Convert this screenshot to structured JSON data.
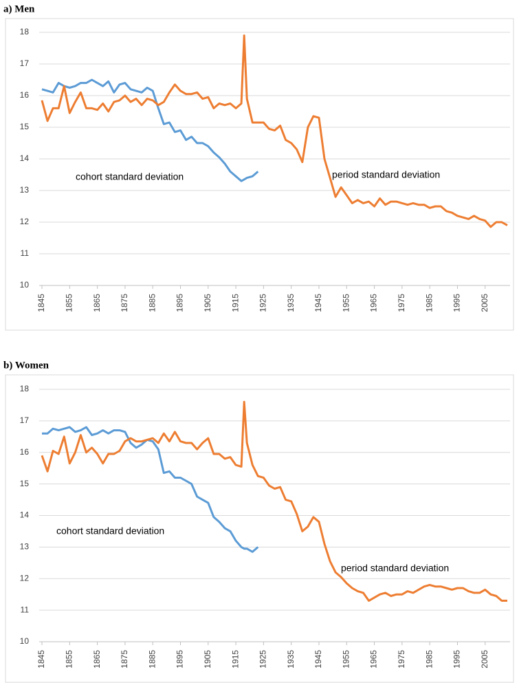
{
  "chart_data": [
    {
      "type": "line",
      "title": "a) Men",
      "x": [
        1845,
        1847,
        1849,
        1851,
        1853,
        1855,
        1857,
        1859,
        1861,
        1863,
        1865,
        1867,
        1869,
        1871,
        1873,
        1875,
        1877,
        1879,
        1881,
        1883,
        1885,
        1887,
        1889,
        1891,
        1893,
        1895,
        1897,
        1899,
        1901,
        1903,
        1905,
        1907,
        1909,
        1911,
        1913,
        1915,
        1917,
        1918,
        1919,
        1921,
        1923,
        1925,
        1927,
        1929,
        1931,
        1933,
        1935,
        1937,
        1939,
        1941,
        1943,
        1945,
        1947,
        1949,
        1951,
        1953,
        1955,
        1957,
        1959,
        1961,
        1963,
        1965,
        1967,
        1969,
        1971,
        1973,
        1975,
        1977,
        1979,
        1981,
        1983,
        1985,
        1987,
        1989,
        1991,
        1993,
        1995,
        1997,
        1999,
        2001,
        2003,
        2005,
        2007,
        2009,
        2011,
        2013
      ],
      "series": [
        {
          "name": "cohort standard deviation",
          "color": "#5b9bd5",
          "values": [
            16.2,
            16.15,
            16.1,
            16.4,
            16.3,
            16.25,
            16.3,
            16.4,
            16.4,
            16.5,
            16.4,
            16.3,
            16.45,
            16.1,
            16.35,
            16.4,
            16.2,
            16.15,
            16.1,
            16.25,
            16.15,
            15.6,
            15.1,
            15.15,
            14.85,
            14.9,
            14.6,
            14.7,
            14.5,
            14.5,
            14.4,
            14.2,
            14.05,
            13.85,
            13.6,
            13.45,
            13.3,
            13.35,
            13.4,
            13.45,
            13.6,
            null,
            null,
            null,
            null,
            null,
            null,
            null,
            null,
            null,
            null,
            null,
            null,
            null,
            null,
            null,
            null,
            null,
            null,
            null,
            null,
            null,
            null,
            null,
            null,
            null,
            null,
            null,
            null,
            null,
            null,
            null,
            null,
            null,
            null,
            null,
            null,
            null,
            null,
            null,
            null,
            null,
            null,
            null,
            null,
            null
          ]
        },
        {
          "name": "period standard deviation",
          "color": "#ed7d31",
          "values": [
            15.85,
            15.2,
            15.6,
            15.6,
            16.3,
            15.45,
            15.8,
            16.1,
            15.6,
            15.6,
            15.55,
            15.75,
            15.5,
            15.8,
            15.85,
            16.0,
            15.8,
            15.9,
            15.7,
            15.9,
            15.85,
            15.7,
            15.8,
            16.1,
            16.35,
            16.15,
            16.05,
            16.05,
            16.1,
            15.9,
            15.95,
            15.6,
            15.75,
            15.7,
            15.75,
            15.6,
            15.75,
            17.9,
            15.9,
            15.15,
            15.15,
            15.15,
            14.95,
            14.9,
            15.05,
            14.6,
            14.5,
            14.3,
            13.9,
            15.0,
            15.35,
            15.3,
            14.0,
            13.4,
            12.8,
            13.1,
            12.85,
            12.6,
            12.7,
            12.6,
            12.65,
            12.5,
            12.75,
            12.55,
            12.65,
            12.65,
            12.6,
            12.55,
            12.6,
            12.55,
            12.55,
            12.45,
            12.5,
            12.5,
            12.35,
            12.3,
            12.2,
            12.15,
            12.1,
            12.2,
            12.1,
            12.05,
            11.85,
            12.0,
            12.0,
            11.9
          ]
        }
      ],
      "xlim": [
        1844,
        2014
      ],
      "xticks": [
        1845,
        1855,
        1865,
        1875,
        1885,
        1895,
        1905,
        1915,
        1925,
        1935,
        1945,
        1955,
        1965,
        1975,
        1985,
        1995,
        2005
      ],
      "ylim": [
        10,
        18
      ],
      "yticks": [
        10,
        11,
        12,
        13,
        14,
        15,
        16,
        17,
        18
      ],
      "grid": true
    },
    {
      "type": "line",
      "title": "b) Women",
      "x": [
        1845,
        1847,
        1849,
        1851,
        1853,
        1855,
        1857,
        1859,
        1861,
        1863,
        1865,
        1867,
        1869,
        1871,
        1873,
        1875,
        1877,
        1879,
        1881,
        1883,
        1885,
        1887,
        1889,
        1891,
        1893,
        1895,
        1897,
        1899,
        1901,
        1903,
        1905,
        1907,
        1909,
        1911,
        1913,
        1915,
        1917,
        1918,
        1919,
        1921,
        1923,
        1925,
        1927,
        1929,
        1931,
        1933,
        1935,
        1937,
        1939,
        1941,
        1943,
        1945,
        1947,
        1949,
        1951,
        1953,
        1955,
        1957,
        1959,
        1961,
        1963,
        1965,
        1967,
        1969,
        1971,
        1973,
        1975,
        1977,
        1979,
        1981,
        1983,
        1985,
        1987,
        1989,
        1991,
        1993,
        1995,
        1997,
        1999,
        2001,
        2003,
        2005,
        2007,
        2009,
        2011,
        2013
      ],
      "series": [
        {
          "name": "cohort standard deviation",
          "color": "#5b9bd5",
          "values": [
            16.6,
            16.6,
            16.75,
            16.7,
            16.75,
            16.8,
            16.65,
            16.7,
            16.8,
            16.55,
            16.6,
            16.7,
            16.6,
            16.7,
            16.7,
            16.65,
            16.3,
            16.15,
            16.25,
            16.4,
            16.35,
            16.1,
            15.35,
            15.4,
            15.2,
            15.2,
            15.1,
            15.0,
            14.6,
            14.5,
            14.4,
            13.95,
            13.8,
            13.6,
            13.5,
            13.2,
            13.0,
            12.95,
            12.95,
            12.85,
            13.0,
            null,
            null,
            null,
            null,
            null,
            null,
            null,
            null,
            null,
            null,
            null,
            null,
            null,
            null,
            null,
            null,
            null,
            null,
            null,
            null,
            null,
            null,
            null,
            null,
            null,
            null,
            null,
            null,
            null,
            null,
            null,
            null,
            null,
            null,
            null,
            null,
            null,
            null,
            null,
            null,
            null,
            null,
            null,
            null,
            null
          ]
        },
        {
          "name": "period standard deviation",
          "color": "#ed7d31",
          "values": [
            15.9,
            15.4,
            16.05,
            15.95,
            16.5,
            15.65,
            16.0,
            16.55,
            16.0,
            16.15,
            15.95,
            15.65,
            15.95,
            15.95,
            16.05,
            16.35,
            16.45,
            16.35,
            16.35,
            16.4,
            16.45,
            16.3,
            16.6,
            16.35,
            16.65,
            16.35,
            16.3,
            16.3,
            16.1,
            16.3,
            16.45,
            15.95,
            15.95,
            15.8,
            15.85,
            15.6,
            15.55,
            17.6,
            16.3,
            15.6,
            15.25,
            15.2,
            14.95,
            14.85,
            14.9,
            14.5,
            14.45,
            14.05,
            13.5,
            13.65,
            13.95,
            13.8,
            13.1,
            12.55,
            12.2,
            12.05,
            11.85,
            11.7,
            11.6,
            11.55,
            11.3,
            11.4,
            11.5,
            11.55,
            11.45,
            11.5,
            11.5,
            11.6,
            11.55,
            11.65,
            11.75,
            11.8,
            11.75,
            11.75,
            11.7,
            11.65,
            11.7,
            11.7,
            11.6,
            11.55,
            11.55,
            11.65,
            11.5,
            11.45,
            11.3,
            11.3
          ]
        }
      ],
      "xlim": [
        1844,
        2014
      ],
      "xticks": [
        1845,
        1855,
        1865,
        1875,
        1885,
        1895,
        1905,
        1915,
        1925,
        1935,
        1945,
        1955,
        1965,
        1975,
        1985,
        1995,
        2005
      ],
      "ylim": [
        10,
        18
      ],
      "yticks": [
        10,
        11,
        12,
        13,
        14,
        15,
        16,
        17,
        18
      ],
      "grid": true
    }
  ]
}
